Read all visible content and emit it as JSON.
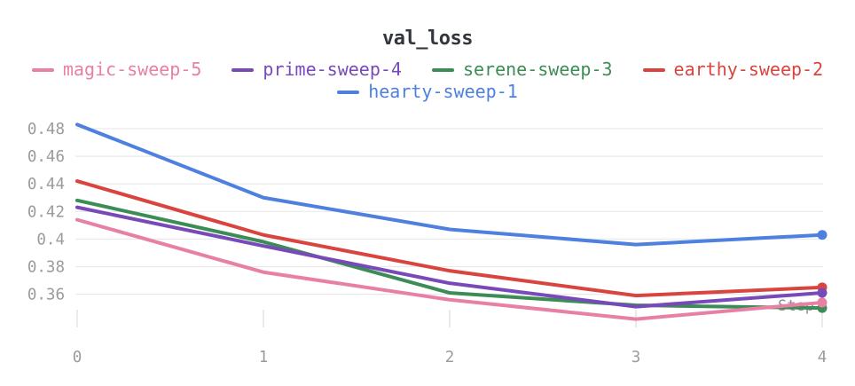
{
  "chart_data": {
    "type": "line",
    "title": "val_loss",
    "xlabel": "Step",
    "ylabel": "",
    "x": [
      0,
      1,
      2,
      3,
      4
    ],
    "x_tick_labels": [
      "0",
      "1",
      "2",
      "3",
      "4"
    ],
    "y_ticks": [
      0.48,
      0.46,
      0.44,
      0.42,
      0.4,
      0.38,
      0.36
    ],
    "y_tick_labels": [
      "0.48",
      "0.46",
      "0.44",
      "0.42",
      "0.4",
      "0.38",
      "0.36"
    ],
    "ylim": [
      0.335,
      0.49
    ],
    "grid": "horizontal",
    "legend_position": "top",
    "series": [
      {
        "name": "magic-sweep-5",
        "color": "#E87FA5",
        "values": [
          0.414,
          0.376,
          0.356,
          0.342,
          0.354
        ]
      },
      {
        "name": "prime-sweep-4",
        "color": "#7849B8",
        "values": [
          0.423,
          0.395,
          0.368,
          0.351,
          0.361
        ]
      },
      {
        "name": "serene-sweep-3",
        "color": "#3C8C55",
        "values": [
          0.428,
          0.398,
          0.361,
          0.352,
          0.35
        ]
      },
      {
        "name": "earthy-sweep-2",
        "color": "#D9453E",
        "values": [
          0.442,
          0.403,
          0.377,
          0.359,
          0.365
        ]
      },
      {
        "name": "hearty-sweep-1",
        "color": "#4E80E0",
        "values": [
          0.483,
          0.43,
          0.407,
          0.396,
          0.403
        ]
      }
    ]
  },
  "colors": {
    "title_text": "#33373D",
    "axis_text": "#9B9B9F",
    "step_label_text": "#8E8E93",
    "gridline": "#E9E9EB",
    "tick_mark": "#E2E2E5",
    "background": "#FFFFFF"
  }
}
